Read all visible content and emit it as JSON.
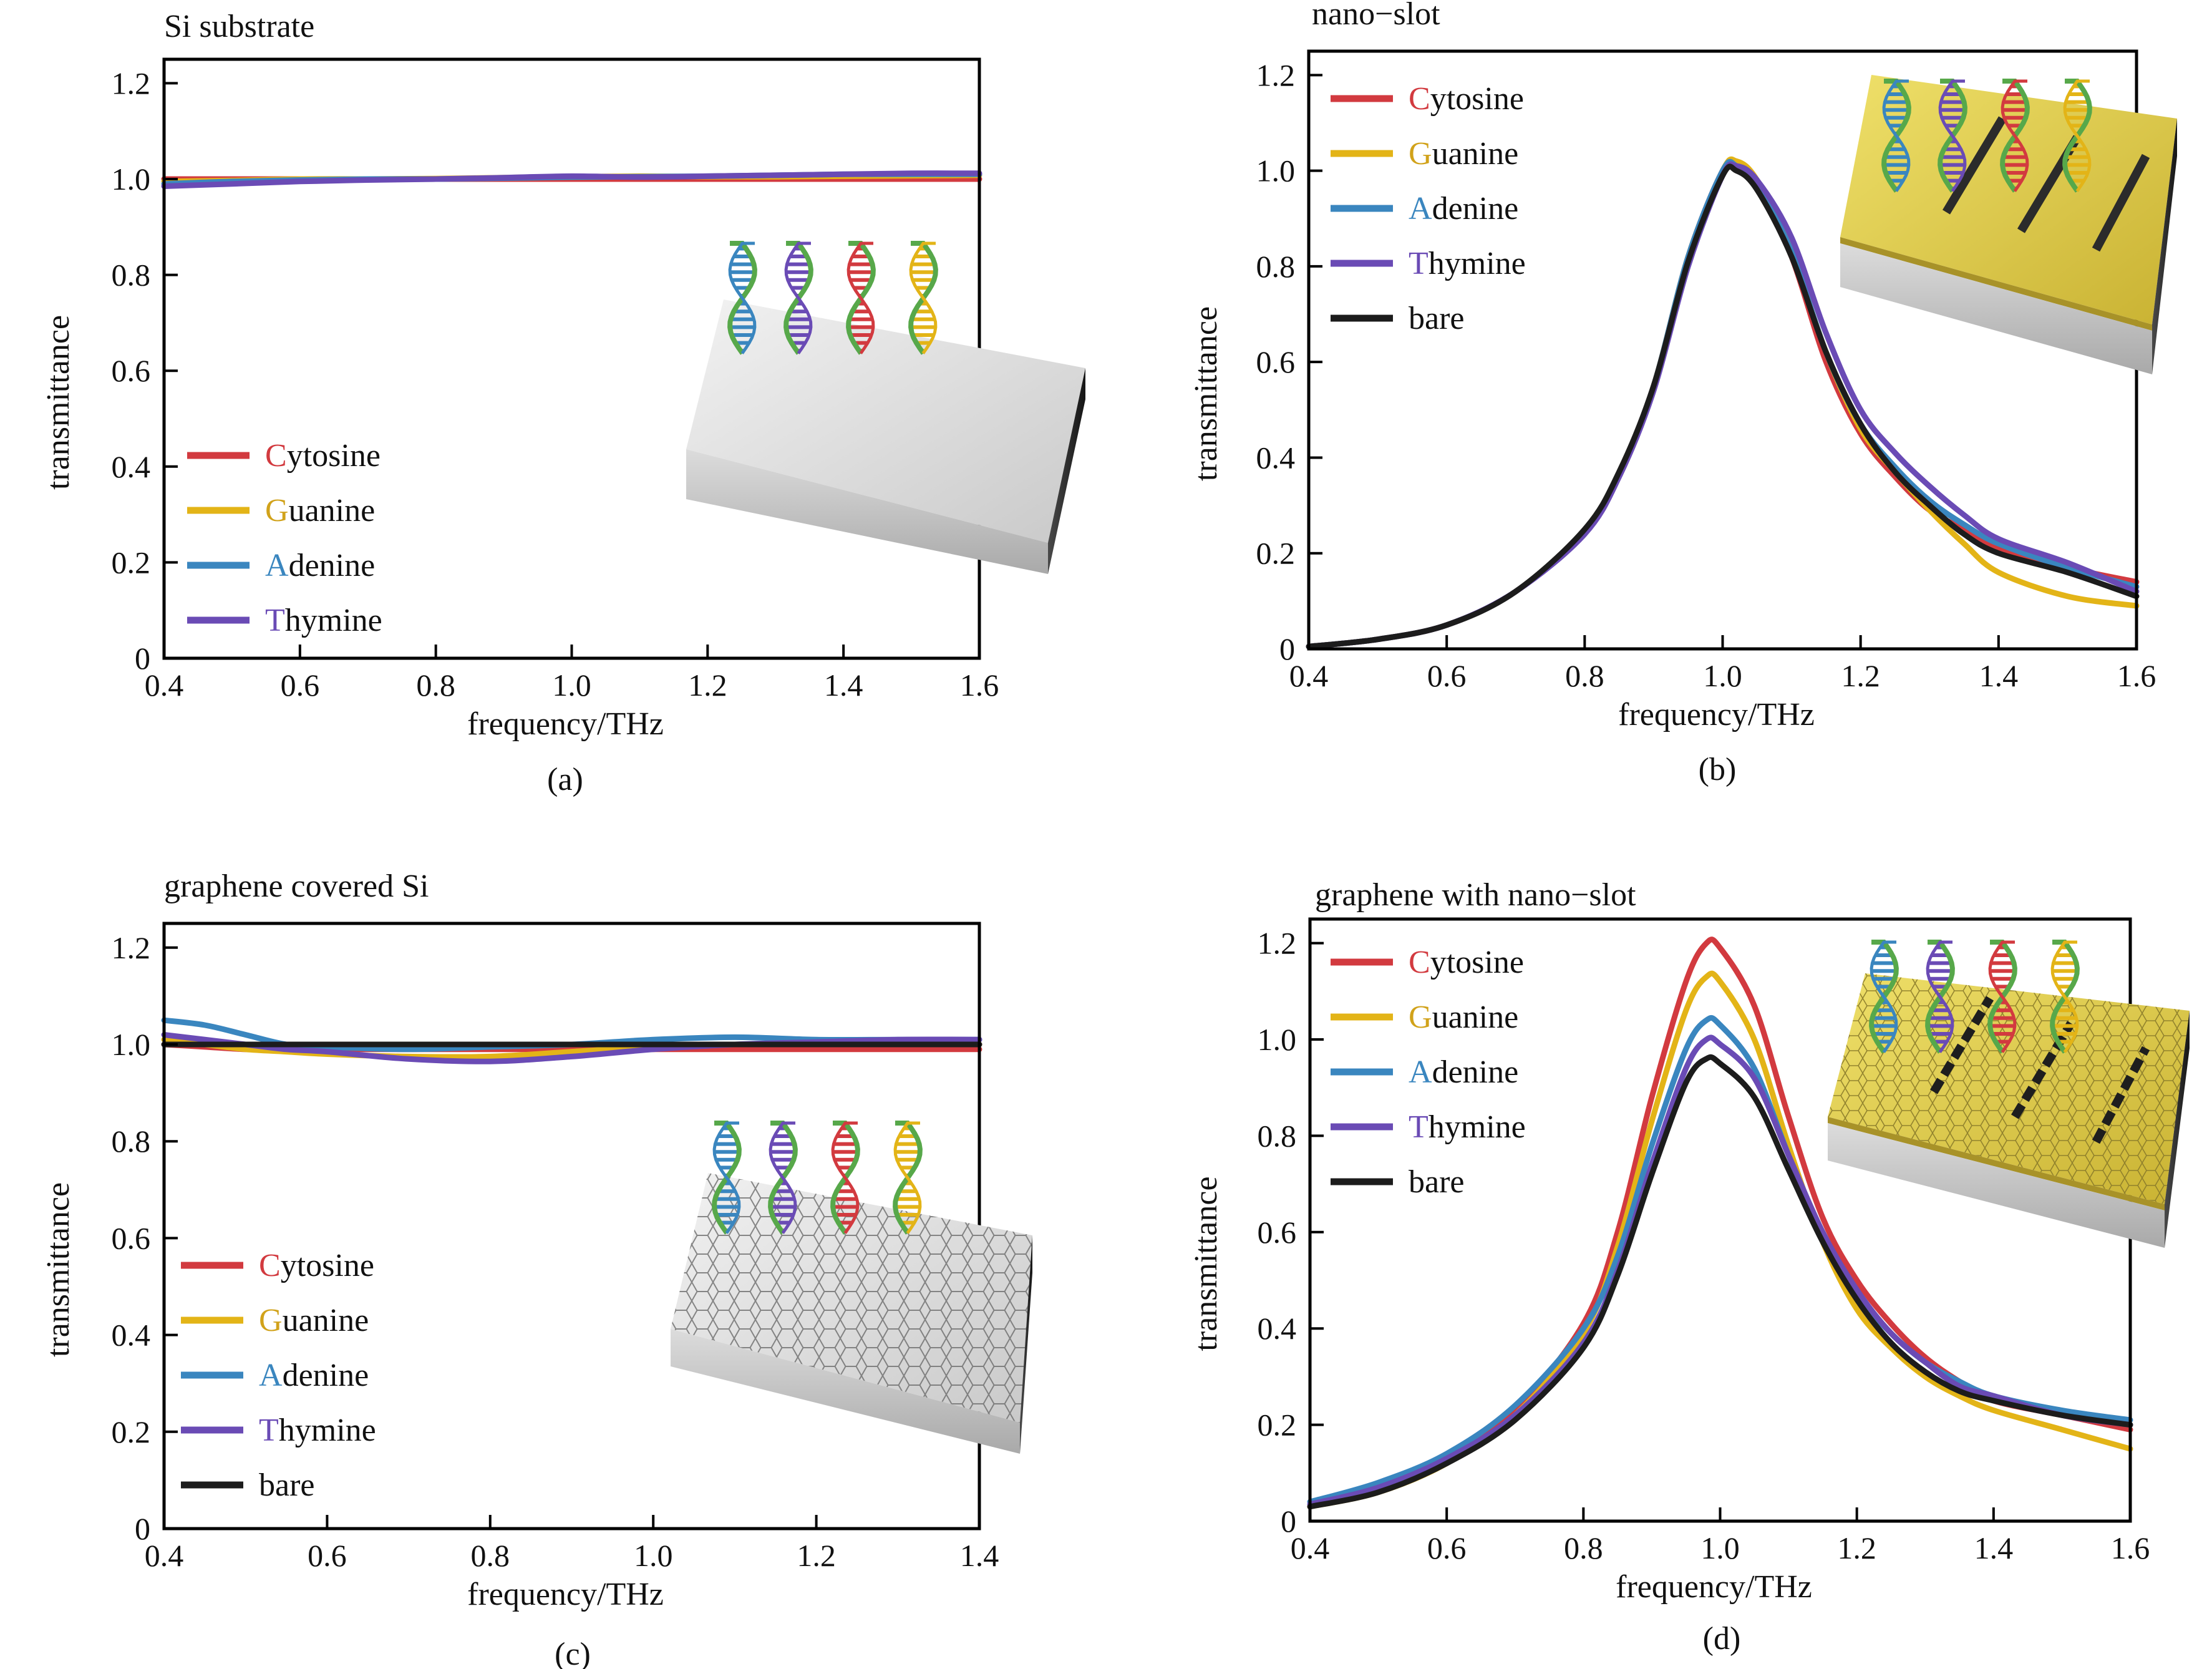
{
  "figure": {
    "series_colors": {
      "Cytosine": "#d23a3f",
      "Guanine": "#e3b417",
      "Adenine": "#3a86bf",
      "Thymine": "#6a4bb5",
      "bare": "#1c1c1c"
    },
    "legend_initial_colors": {
      "Cytosine": "#d23a3f",
      "Guanine": "#d1a21a",
      "Adenine": "#3a86bf",
      "Thymine": "#6a4bb5"
    }
  },
  "chart_data": [
    {
      "type": "line",
      "panel_title": "Si substrate",
      "caption": "(a)",
      "xlabel": "frequency/THz",
      "ylabel": "transmittance",
      "xlim": [
        0.4,
        1.6
      ],
      "ylim": [
        0,
        1.25
      ],
      "xticks": [
        "0.4",
        "0.6",
        "0.8",
        "1.0",
        "1.2",
        "1.4",
        "1.6"
      ],
      "yticks": [
        "0",
        "0.2",
        "0.4",
        "0.6",
        "0.8",
        "1.0",
        "1.2"
      ],
      "inset": "si-substrate-with-dna-illustration",
      "legend_position": "lower-left",
      "x": [
        0.4,
        0.5,
        0.6,
        0.7,
        0.8,
        0.9,
        1.0,
        1.1,
        1.2,
        1.3,
        1.4,
        1.5,
        1.6
      ],
      "series": [
        {
          "name": "Cytosine",
          "values": [
            1.0,
            1.0,
            1.0,
            1.0,
            1.0,
            1.0,
            1.0,
            1.0,
            1.0,
            1.0,
            1.0,
            1.0,
            1.0
          ]
        },
        {
          "name": "Guanine",
          "values": [
            0.995,
            0.997,
            1.0,
            1.0,
            1.001,
            1.003,
            1.005,
            1.006,
            1.005,
            1.005,
            1.006,
            1.007,
            1.008
          ]
        },
        {
          "name": "Adenine",
          "values": [
            0.99,
            0.995,
            0.998,
            1.0,
            1.0,
            1.002,
            1.004,
            1.005,
            1.006,
            1.008,
            1.01,
            1.01,
            1.01
          ]
        },
        {
          "name": "Thymine",
          "values": [
            0.985,
            0.99,
            0.995,
            0.998,
            1.0,
            1.003,
            1.006,
            1.004,
            1.006,
            1.008,
            1.01,
            1.012,
            1.012
          ]
        }
      ]
    },
    {
      "type": "line",
      "panel_title": "nano−slot",
      "caption": "(b)",
      "xlabel": "frequency/THz",
      "ylabel": "transmittance",
      "xlim": [
        0.4,
        1.6
      ],
      "ylim": [
        0,
        1.25
      ],
      "xticks": [
        "0.4",
        "0.6",
        "0.8",
        "1.0",
        "1.2",
        "1.4",
        "1.6"
      ],
      "yticks": [
        "0",
        "0.2",
        "0.4",
        "0.6",
        "0.8",
        "1.0",
        "1.2"
      ],
      "inset": "gold-nano-slot-substrate-with-dna-illustration",
      "legend_position": "upper-left",
      "x": [
        0.4,
        0.5,
        0.6,
        0.7,
        0.8,
        0.85,
        0.9,
        0.95,
        1.0,
        1.02,
        1.05,
        1.1,
        1.15,
        1.2,
        1.25,
        1.3,
        1.35,
        1.4,
        1.5,
        1.6
      ],
      "series": [
        {
          "name": "Cytosine",
          "values": [
            0.005,
            0.02,
            0.05,
            0.12,
            0.25,
            0.37,
            0.55,
            0.82,
            1.0,
            1.01,
            0.97,
            0.82,
            0.6,
            0.45,
            0.36,
            0.29,
            0.25,
            0.21,
            0.17,
            0.14
          ]
        },
        {
          "name": "Guanine",
          "values": [
            0.005,
            0.02,
            0.05,
            0.12,
            0.25,
            0.37,
            0.55,
            0.82,
            1.0,
            1.02,
            0.98,
            0.83,
            0.62,
            0.46,
            0.37,
            0.29,
            0.22,
            0.16,
            0.11,
            0.09
          ]
        },
        {
          "name": "Adenine",
          "values": [
            0.005,
            0.02,
            0.05,
            0.12,
            0.25,
            0.37,
            0.55,
            0.82,
            1.0,
            1.01,
            0.97,
            0.83,
            0.62,
            0.47,
            0.38,
            0.31,
            0.26,
            0.22,
            0.17,
            0.13
          ]
        },
        {
          "name": "Thymine",
          "values": [
            0.005,
            0.02,
            0.05,
            0.12,
            0.24,
            0.36,
            0.54,
            0.8,
            0.99,
            1.01,
            0.98,
            0.86,
            0.66,
            0.5,
            0.41,
            0.34,
            0.28,
            0.23,
            0.18,
            0.12
          ]
        },
        {
          "name": "bare",
          "values": [
            0.005,
            0.02,
            0.05,
            0.12,
            0.25,
            0.37,
            0.55,
            0.81,
            0.99,
            1.0,
            0.96,
            0.82,
            0.62,
            0.47,
            0.37,
            0.3,
            0.24,
            0.2,
            0.16,
            0.11
          ]
        }
      ]
    },
    {
      "type": "line",
      "panel_title": "graphene covered Si",
      "caption": "(c)",
      "xlabel": "frequency/THz",
      "ylabel": "transmittance",
      "xlim": [
        0.4,
        1.4
      ],
      "ylim": [
        0,
        1.25
      ],
      "xticks": [
        "0.4",
        "0.6",
        "0.8",
        "1.0",
        "1.2",
        "1.4"
      ],
      "yticks": [
        "0",
        "0.2",
        "0.4",
        "0.6",
        "0.8",
        "1.0",
        "1.2"
      ],
      "inset": "graphene-covered-si-with-dna-illustration",
      "legend_position": "lower-left",
      "x": [
        0.4,
        0.45,
        0.5,
        0.55,
        0.6,
        0.7,
        0.8,
        0.9,
        1.0,
        1.1,
        1.2,
        1.3,
        1.4
      ],
      "series": [
        {
          "name": "Cytosine",
          "values": [
            1.0,
            0.995,
            0.99,
            0.99,
            0.99,
            0.99,
            0.99,
            0.99,
            0.99,
            0.99,
            0.99,
            0.99,
            0.99
          ]
        },
        {
          "name": "Guanine",
          "values": [
            1.01,
            1.0,
            0.99,
            0.985,
            0.98,
            0.975,
            0.975,
            0.985,
            0.995,
            1.0,
            1.0,
            1.0,
            1.0
          ]
        },
        {
          "name": "Adenine",
          "values": [
            1.05,
            1.04,
            1.02,
            1.0,
            0.995,
            0.99,
            0.995,
            1.0,
            1.01,
            1.015,
            1.01,
            1.01,
            1.01
          ]
        },
        {
          "name": "Thymine",
          "values": [
            1.02,
            1.01,
            1.0,
            0.99,
            0.985,
            0.97,
            0.965,
            0.975,
            0.99,
            1.0,
            1.005,
            1.01,
            1.01
          ]
        },
        {
          "name": "bare",
          "values": [
            1.0,
            1.0,
            1.0,
            1.0,
            1.0,
            1.0,
            1.0,
            1.0,
            1.0,
            1.0,
            1.0,
            1.0,
            1.0
          ]
        }
      ]
    },
    {
      "type": "line",
      "panel_title": "graphene with nano−slot",
      "caption": "(d)",
      "xlabel": "frequency/THz",
      "ylabel": "transmittance",
      "xlim": [
        0.4,
        1.6
      ],
      "ylim": [
        0,
        1.25
      ],
      "xticks": [
        "0.4",
        "0.6",
        "0.8",
        "1.0",
        "1.2",
        "1.4",
        "1.6"
      ],
      "yticks": [
        "0",
        "0.2",
        "0.4",
        "0.6",
        "0.8",
        "1.0",
        "1.2"
      ],
      "inset": "graphene-nano-slot-substrate-with-dna-illustration",
      "legend_position": "upper-left",
      "x": [
        0.4,
        0.5,
        0.6,
        0.7,
        0.8,
        0.85,
        0.9,
        0.95,
        0.98,
        1.0,
        1.05,
        1.1,
        1.15,
        1.2,
        1.25,
        1.3,
        1.35,
        1.4,
        1.5,
        1.6
      ],
      "series": [
        {
          "name": "Cytosine",
          "values": [
            0.03,
            0.07,
            0.13,
            0.23,
            0.41,
            0.6,
            0.88,
            1.12,
            1.2,
            1.19,
            1.07,
            0.84,
            0.63,
            0.5,
            0.41,
            0.34,
            0.29,
            0.25,
            0.22,
            0.19
          ]
        },
        {
          "name": "Guanine",
          "values": [
            0.03,
            0.06,
            0.12,
            0.22,
            0.39,
            0.57,
            0.83,
            1.06,
            1.13,
            1.12,
            1.0,
            0.78,
            0.58,
            0.44,
            0.36,
            0.3,
            0.26,
            0.23,
            0.19,
            0.15
          ]
        },
        {
          "name": "Adenine",
          "values": [
            0.04,
            0.08,
            0.14,
            0.24,
            0.4,
            0.55,
            0.78,
            0.98,
            1.04,
            1.03,
            0.94,
            0.76,
            0.59,
            0.47,
            0.39,
            0.33,
            0.29,
            0.26,
            0.23,
            0.21
          ]
        },
        {
          "name": "Thymine",
          "values": [
            0.035,
            0.07,
            0.13,
            0.22,
            0.37,
            0.52,
            0.74,
            0.94,
            1.0,
            0.99,
            0.92,
            0.76,
            0.6,
            0.48,
            0.39,
            0.33,
            0.28,
            0.26,
            0.22,
            0.2
          ]
        },
        {
          "name": "bare",
          "values": [
            0.03,
            0.06,
            0.12,
            0.21,
            0.36,
            0.51,
            0.72,
            0.91,
            0.96,
            0.95,
            0.88,
            0.73,
            0.58,
            0.46,
            0.37,
            0.31,
            0.27,
            0.25,
            0.22,
            0.2
          ]
        }
      ]
    }
  ]
}
